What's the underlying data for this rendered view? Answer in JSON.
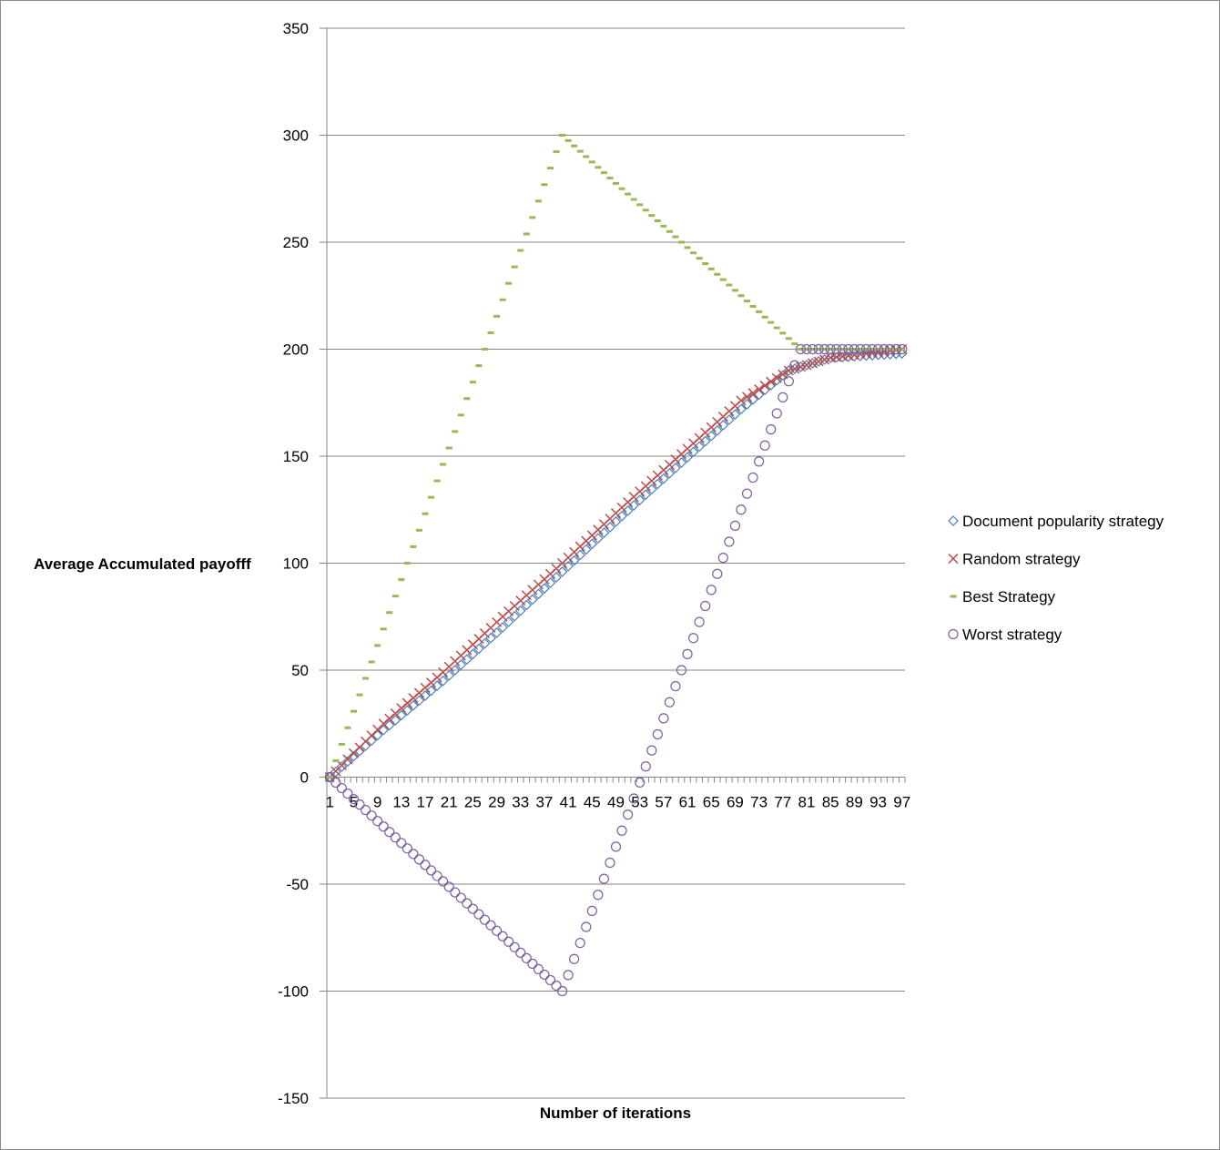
{
  "chart_data": {
    "type": "scatter",
    "title": "",
    "xlabel": "Number of iterations",
    "ylabel": "Average Accumulated payofff",
    "ylim": [
      -150,
      350
    ],
    "yticks": [
      350,
      300,
      250,
      200,
      150,
      100,
      50,
      0,
      -50,
      -100,
      -150
    ],
    "xticks": [
      1,
      5,
      9,
      13,
      17,
      21,
      25,
      29,
      33,
      37,
      41,
      45,
      49,
      53,
      57,
      61,
      65,
      69,
      73,
      77,
      81,
      85,
      89,
      93,
      97
    ],
    "x_range": [
      1,
      97
    ],
    "grid": true,
    "legend_position": "right",
    "series": [
      {
        "name": "Document popularity strategy",
        "marker": "diamond",
        "color": "#4a7ebb",
        "points": [
          [
            1,
            0
          ],
          [
            10,
            22
          ],
          [
            20,
            45
          ],
          [
            30,
            70
          ],
          [
            40,
            96
          ],
          [
            50,
            122
          ],
          [
            60,
            147
          ],
          [
            70,
            172
          ],
          [
            78,
            190
          ],
          [
            85,
            196
          ],
          [
            97,
            198
          ]
        ]
      },
      {
        "name": "Random strategy",
        "marker": "x",
        "color": "#be4b48",
        "points": [
          [
            1,
            0
          ],
          [
            10,
            25
          ],
          [
            20,
            49
          ],
          [
            30,
            75
          ],
          [
            40,
            100
          ],
          [
            50,
            126
          ],
          [
            60,
            151
          ],
          [
            70,
            176
          ],
          [
            78,
            190
          ],
          [
            85,
            196
          ],
          [
            97,
            200
          ]
        ]
      },
      {
        "name": "Best Strategy",
        "marker": "dash",
        "color": "#98b954",
        "points": [
          [
            1,
            0
          ],
          [
            40,
            300
          ],
          [
            80,
            200
          ],
          [
            97,
            200
          ]
        ]
      },
      {
        "name": "Worst strategy",
        "marker": "circle",
        "color": "#7d5fa0",
        "points": [
          [
            1,
            0
          ],
          [
            40,
            -100
          ],
          [
            80,
            200
          ],
          [
            97,
            200
          ]
        ]
      }
    ]
  }
}
